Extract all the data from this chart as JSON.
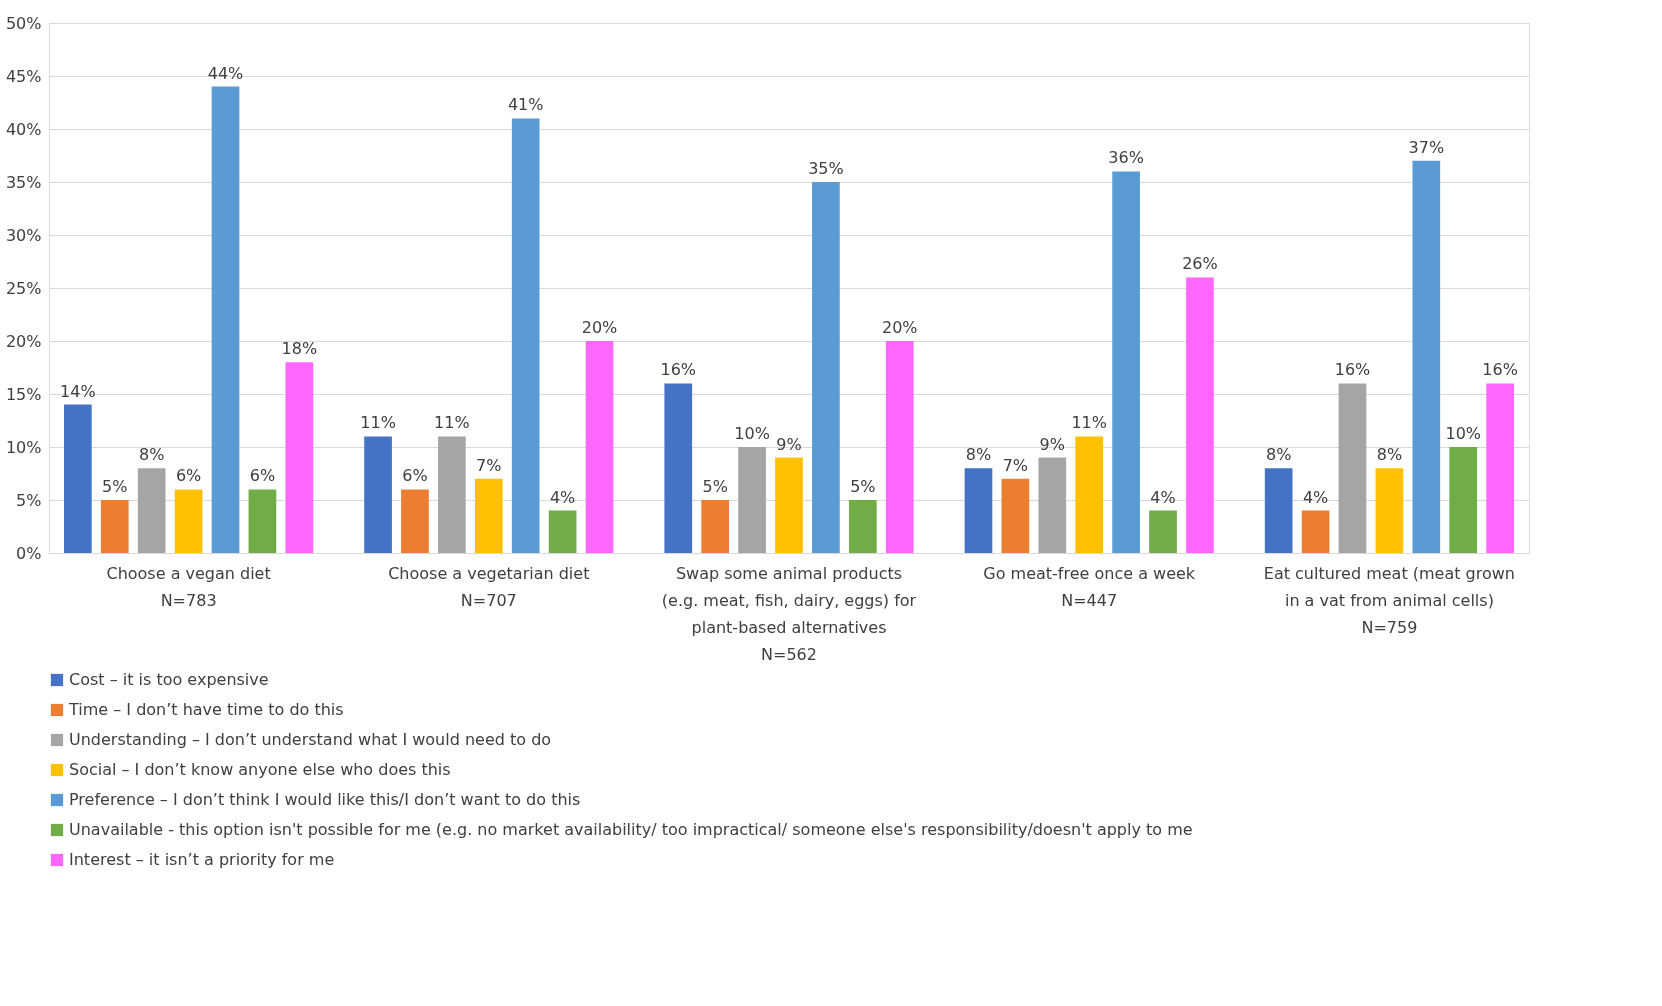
{
  "chart_data": {
    "type": "bar",
    "categories": [
      "Choose a vegan diet\nN=783",
      "Choose a vegetarian diet\nN=707",
      "Swap some animal products\n(e.g. meat, fish, dairy, eggs) for\nplant-based alternatives\nN=562",
      "Go meat-free once a week\nN=447",
      "Eat cultured meat (meat grown\nin a vat from animal cells)\nN=759"
    ],
    "series": [
      {
        "name": "Cost – it is too expensive",
        "color": "#4472c4",
        "values": [
          14,
          11,
          16,
          8,
          8
        ],
        "value_labels": [
          "14%",
          "11%",
          "16%",
          "8%",
          "8%"
        ]
      },
      {
        "name": "Time – I don’t have time to do this",
        "color": "#ed7d31",
        "values": [
          5,
          6,
          5,
          7,
          4
        ],
        "value_labels": [
          "5%",
          "6%",
          "5%",
          "7%",
          "4%"
        ]
      },
      {
        "name": "Understanding – I don’t understand what I would need to do",
        "color": "#a5a5a5",
        "values": [
          8,
          11,
          10,
          9,
          16
        ],
        "value_labels": [
          "8%",
          "11%",
          "10%",
          "9%",
          "16%"
        ]
      },
      {
        "name": "Social – I don’t know anyone else who does this",
        "color": "#ffc000",
        "values": [
          6,
          7,
          9,
          11,
          8
        ],
        "value_labels": [
          "6%",
          "7%",
          "9%",
          "11%",
          "8%"
        ]
      },
      {
        "name": "Preference – I don’t think I would like this/I don’t want to do this",
        "color": "#5b9bd5",
        "values": [
          44,
          41,
          35,
          36,
          37
        ],
        "value_labels": [
          "44%",
          "41%",
          "35%",
          "36%",
          "37%"
        ]
      },
      {
        "name": "Unavailable - this option isn't possible for me (e.g. no market availability/ too impractical/ someone else's responsibility/doesn't apply to me",
        "color": "#70ad47",
        "values": [
          6,
          4,
          5,
          4,
          10
        ],
        "value_labels": [
          "6%",
          "4%",
          "5%",
          "4%",
          "10%"
        ]
      },
      {
        "name": "Interest – it isn’t a priority for me",
        "color": "#ff66ff",
        "values": [
          18,
          20,
          20,
          26,
          16
        ],
        "value_labels": [
          "18%",
          "20%",
          "20%",
          "26%",
          "16%"
        ]
      }
    ],
    "ylim": [
      0,
      50
    ],
    "yticks": [
      {
        "value": 0,
        "label": "0%"
      },
      {
        "value": 5,
        "label": "5%"
      },
      {
        "value": 10,
        "label": "10%"
      },
      {
        "value": 15,
        "label": "15%"
      },
      {
        "value": 20,
        "label": "20%"
      },
      {
        "value": 25,
        "label": "25%"
      },
      {
        "value": 30,
        "label": "30%"
      },
      {
        "value": 35,
        "label": "35%"
      },
      {
        "value": 40,
        "label": "40%"
      },
      {
        "value": 45,
        "label": "45%"
      },
      {
        "value": 50,
        "label": "50%"
      }
    ],
    "grid": "y",
    "legend": "bottom left"
  }
}
